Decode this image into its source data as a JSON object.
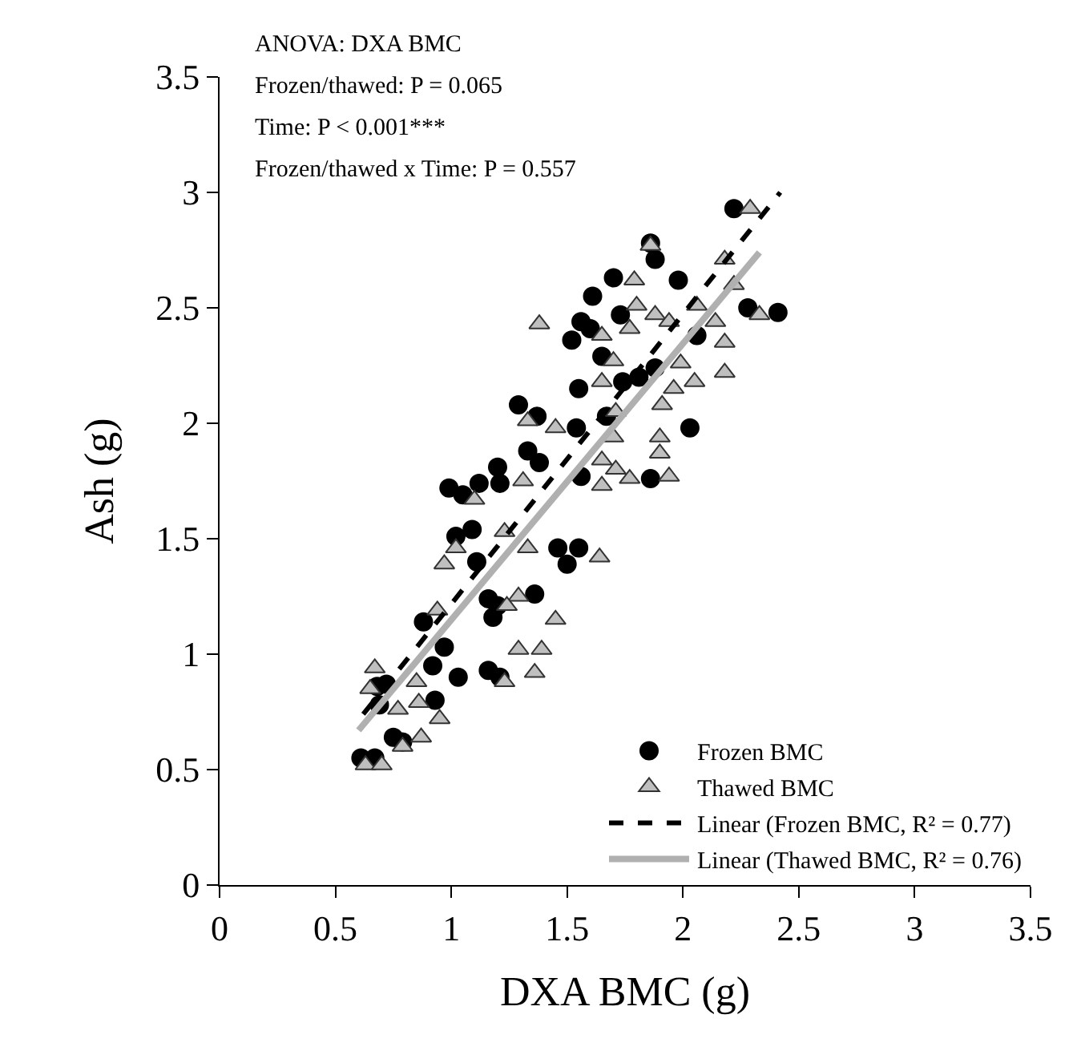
{
  "chart_data": {
    "type": "scatter",
    "xlabel": "DXA BMC (g)",
    "ylabel": "Ash (g)",
    "annotations": [
      "ANOVA: DXA BMC",
      "Frozen/thawed: P = 0.065",
      "Time: P < 0.001***",
      "Frozen/thawed x Time: P = 0.557"
    ],
    "xlim": [
      0,
      3.5
    ],
    "xticks": [
      0,
      0.5,
      1,
      1.5,
      2,
      2.5,
      3,
      3.5
    ],
    "ylim": [
      0,
      3.5
    ],
    "yticks": [
      0,
      0.5,
      1,
      1.5,
      2,
      2.5,
      3,
      3.5
    ],
    "grid": false,
    "legend": "bottom right",
    "series": [
      {
        "name": "Frozen BMC",
        "marker": "circle",
        "color": "#000000",
        "x": [
          2.22,
          1.86,
          1.88,
          1.7,
          1.98,
          1.61,
          2.28,
          2.41,
          1.73,
          1.56,
          1.6,
          1.52,
          1.65,
          2.06,
          1.55,
          1.74,
          1.81,
          1.88,
          1.29,
          1.37,
          1.54,
          1.67,
          2.03,
          1.33,
          1.38,
          1.2,
          0.99,
          1.05,
          1.12,
          1.86,
          1.56,
          1.21,
          1.02,
          1.09,
          1.11,
          1.46,
          1.55,
          1.5,
          1.36,
          1.16,
          1.2,
          1.18,
          0.88,
          0.97,
          0.92,
          1.03,
          1.16,
          1.21,
          0.93,
          0.72,
          0.69,
          0.75,
          0.79,
          0.61,
          0.67,
          0.68
        ],
        "values": [
          2.93,
          2.78,
          2.71,
          2.63,
          2.62,
          2.55,
          2.5,
          2.48,
          2.47,
          2.44,
          2.41,
          2.36,
          2.29,
          2.38,
          2.15,
          2.18,
          2.2,
          2.24,
          2.08,
          2.03,
          1.98,
          2.03,
          1.98,
          1.88,
          1.83,
          1.81,
          1.72,
          1.69,
          1.74,
          1.76,
          1.77,
          1.74,
          1.51,
          1.54,
          1.4,
          1.46,
          1.46,
          1.39,
          1.26,
          1.24,
          1.21,
          1.16,
          1.14,
          1.03,
          0.95,
          0.9,
          0.93,
          0.9,
          0.8,
          0.87,
          0.78,
          0.64,
          0.62,
          0.55,
          0.55,
          0.86
        ]
      },
      {
        "name": "Thawed BMC",
        "marker": "triangle",
        "color": "#bfbfbf",
        "x": [
          2.29,
          1.86,
          2.18,
          1.79,
          2.22,
          1.8,
          2.06,
          1.38,
          1.88,
          1.94,
          2.14,
          2.33,
          1.77,
          1.65,
          1.7,
          2.18,
          1.99,
          2.18,
          1.65,
          1.96,
          2.05,
          1.91,
          1.71,
          1.33,
          1.45,
          1.7,
          1.9,
          1.9,
          1.65,
          1.71,
          1.77,
          1.65,
          1.94,
          1.31,
          1.1,
          1.02,
          0.97,
          1.33,
          1.64,
          1.23,
          1.29,
          1.24,
          1.45,
          0.94,
          1.29,
          1.39,
          1.36,
          1.23,
          0.85,
          0.86,
          0.67,
          0.65,
          0.95,
          0.77,
          0.87,
          0.79,
          0.63,
          0.7
        ],
        "values": [
          2.93,
          2.77,
          2.71,
          2.62,
          2.6,
          2.51,
          2.51,
          2.43,
          2.47,
          2.44,
          2.44,
          2.47,
          2.41,
          2.38,
          2.27,
          2.35,
          2.26,
          2.22,
          2.18,
          2.15,
          2.18,
          2.08,
          2.05,
          2.01,
          1.98,
          1.94,
          1.94,
          1.87,
          1.84,
          1.8,
          1.76,
          1.73,
          1.77,
          1.75,
          1.67,
          1.46,
          1.39,
          1.46,
          1.42,
          1.53,
          1.25,
          1.21,
          1.15,
          1.19,
          1.02,
          1.02,
          0.92,
          0.88,
          0.88,
          0.79,
          0.94,
          0.85,
          0.72,
          0.76,
          0.64,
          0.6,
          0.52,
          0.52
        ]
      },
      {
        "name": "Linear (Frozen BMC, R² = 0.77)",
        "type": "line",
        "color": "#000000",
        "line_style": "dashed",
        "x": [
          0.62,
          2.42
        ],
        "values": [
          0.74,
          3.0
        ]
      },
      {
        "name": "Linear (Thawed BMC, R² = 0.76)",
        "type": "line",
        "color": "#b0b0b0",
        "line_style": "solid",
        "x": [
          0.6,
          2.33
        ],
        "values": [
          0.67,
          2.74
        ]
      }
    ]
  }
}
